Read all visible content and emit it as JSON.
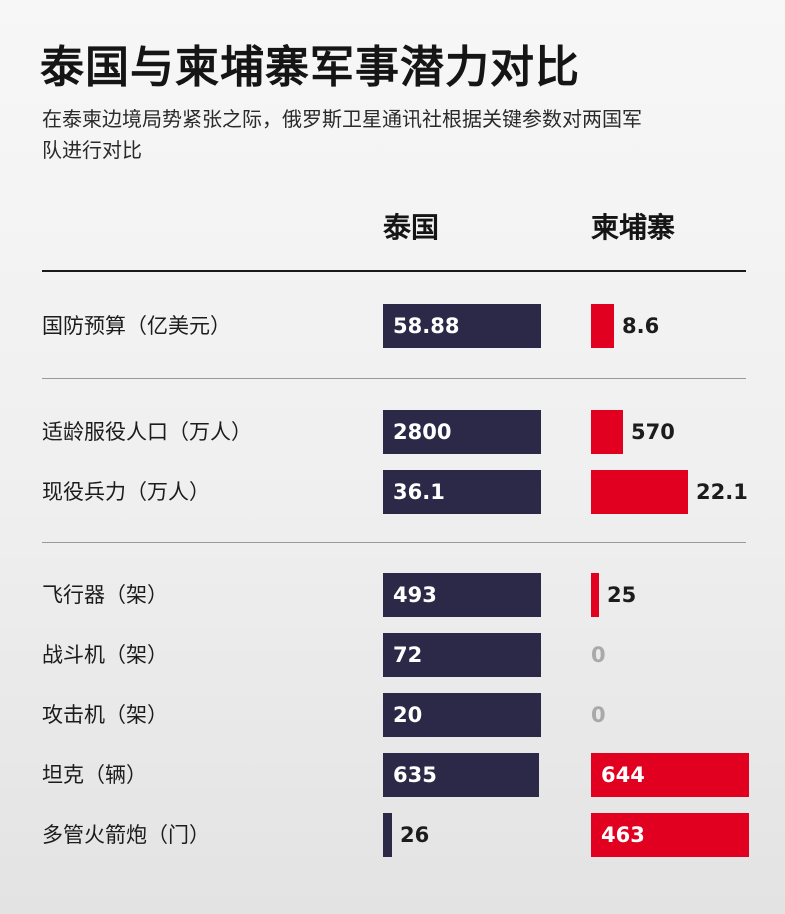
{
  "title": "泰国与柬埔寨军事潜力对比",
  "subtitle": "在泰柬边境局势紧张之际，俄罗斯卫星通讯社根据关键参数对两国军队进行对比",
  "colors": {
    "thailand": "#2c2948",
    "cambodia": "#e1001f",
    "zero_label": "#a9a9a9"
  },
  "chart_data": {
    "type": "bar",
    "series": [
      {
        "name": "泰国",
        "values": [
          58.88,
          2800,
          36.1,
          493,
          72,
          20,
          635,
          26
        ]
      },
      {
        "name": "柬埔寨",
        "values": [
          8.6,
          570,
          22.1,
          25,
          0,
          0,
          644,
          463
        ]
      }
    ],
    "categories": [
      "国防预算（亿美元）",
      "适龄服役人口（万人）",
      "现役兵力（万人）",
      "飞行器（架）",
      "战斗机（架）",
      "攻击机（架）",
      "坦克（辆）",
      "多管火箭炮（门）"
    ],
    "value_labels": {
      "thailand": [
        "58.88",
        "2800",
        "36.1",
        "493",
        "72",
        "20",
        "635",
        "26"
      ],
      "cambodia": [
        "8.6",
        "570",
        "22.1",
        "25",
        "0",
        "0",
        "644",
        "463"
      ]
    },
    "groups": [
      [
        0
      ],
      [
        1,
        2
      ],
      [
        3,
        4,
        5,
        6,
        7
      ]
    ],
    "orientation": "horizontal",
    "layout": "paired columns, each row scaled independently"
  }
}
